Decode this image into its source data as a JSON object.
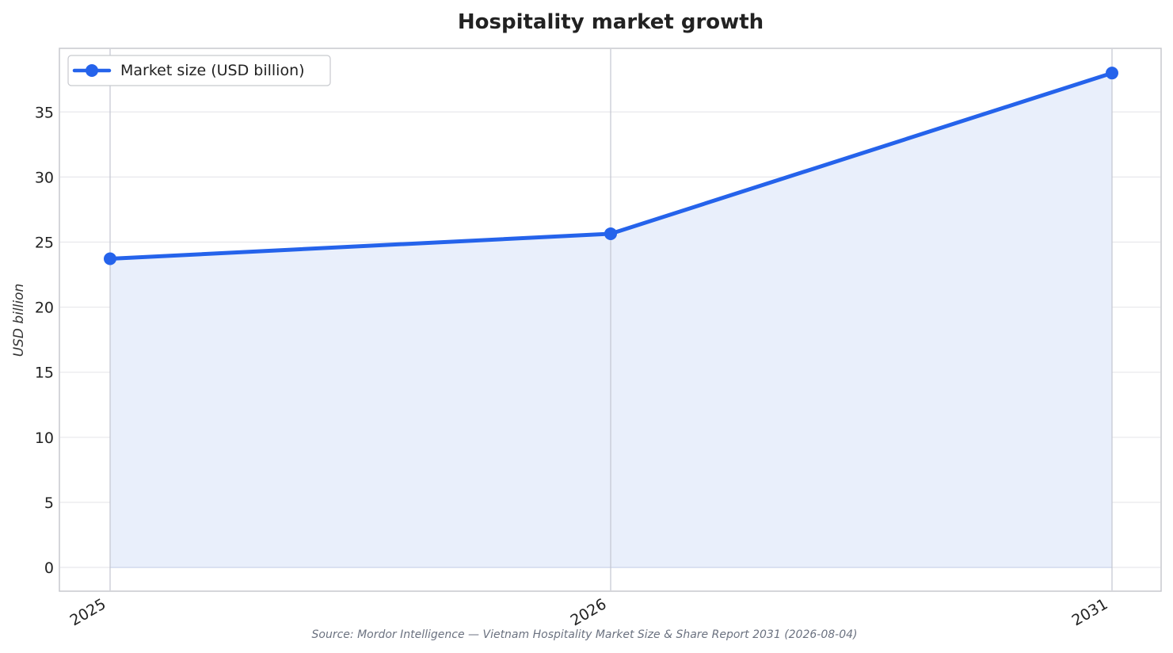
{
  "chart_data": {
    "type": "area",
    "title": "Hospitality market growth",
    "xlabel": "",
    "ylabel": "USD billion",
    "categories": [
      "2025",
      "2026",
      "2031"
    ],
    "x": [
      2025,
      2026,
      2031
    ],
    "series": [
      {
        "name": "Market size (USD billion)",
        "values": [
          23.72,
          25.64,
          37.99
        ],
        "color": "#2563eb",
        "fill_color": "#e9effb"
      }
    ],
    "ylim": [
      -1.8,
      39.8
    ],
    "yticks": [
      0,
      5,
      10,
      15,
      20,
      25,
      30,
      35
    ],
    "grid": true,
    "legend_position": "top-left",
    "source": "Source: Mordor Intelligence — Vietnam Hospitality Market Size & Share Report 2031 (2026-08-04)"
  }
}
